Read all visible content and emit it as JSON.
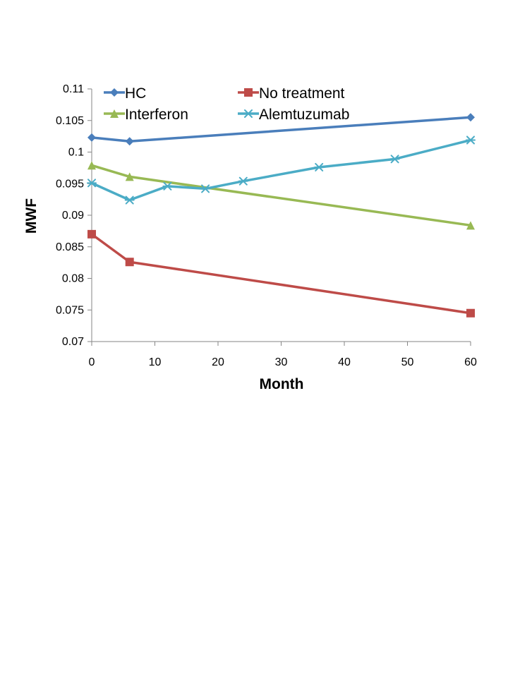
{
  "chart_data": {
    "type": "line",
    "title": "",
    "xlabel": "Month",
    "ylabel": "MWF",
    "xlim": [
      0,
      60
    ],
    "ylim": [
      0.07,
      0.11
    ],
    "xticks": [
      0,
      10,
      20,
      30,
      40,
      50,
      60
    ],
    "xtick_labels": [
      "0",
      "10",
      "20",
      "30",
      "40",
      "50",
      "60"
    ],
    "yticks": [
      0.07,
      0.075,
      0.08,
      0.085,
      0.09,
      0.095,
      0.1,
      0.105,
      0.11
    ],
    "ytick_labels": [
      "0.07",
      "0.075",
      "0.08",
      "0.085",
      "0.09",
      "0.095",
      "0.1",
      "0.105",
      "0.11"
    ],
    "grid": false,
    "legend_position": "top",
    "series": [
      {
        "name": "HC",
        "color": "#4A7EBB",
        "marker": "diamond",
        "x": [
          0,
          6,
          60
        ],
        "y": [
          0.1023,
          0.1017,
          0.1055
        ]
      },
      {
        "name": "No treatment",
        "color": "#BE4B48",
        "marker": "square",
        "x": [
          0,
          6,
          60
        ],
        "y": [
          0.087,
          0.0826,
          0.0745
        ]
      },
      {
        "name": "Interferon",
        "color": "#98B954",
        "marker": "triangle",
        "x": [
          0,
          6,
          60
        ],
        "y": [
          0.0979,
          0.0961,
          0.0884
        ]
      },
      {
        "name": "Alemtuzumab",
        "color": "#4BACC6",
        "marker": "asterisk",
        "x": [
          0,
          6,
          12,
          18,
          24,
          36,
          48,
          60
        ],
        "y": [
          0.0951,
          0.0924,
          0.0946,
          0.0942,
          0.0954,
          0.0976,
          0.0989,
          0.1019
        ]
      }
    ]
  }
}
